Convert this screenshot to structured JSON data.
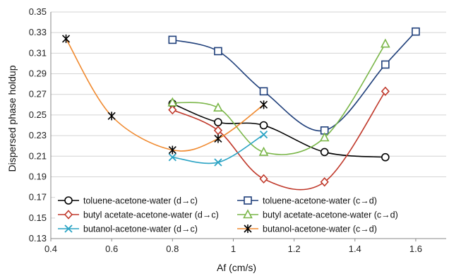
{
  "chart_data": {
    "type": "line",
    "title": "",
    "xlabel": "Af (cm/s)",
    "ylabel": "Dispersed phase holdup",
    "xlim": [
      0.4,
      1.7
    ],
    "ylim": [
      0.13,
      0.35
    ],
    "xticks": [
      "0.4",
      "0.6",
      "0.8",
      "1",
      "1.2",
      "1.4",
      "1.6"
    ],
    "yticks": [
      "0.13",
      "0.15",
      "0.17",
      "0.19",
      "0.21",
      "0.23",
      "0.25",
      "0.27",
      "0.29",
      "0.31",
      "0.33",
      "0.35"
    ],
    "grid": "horizontal",
    "legend_position": "bottom-inside",
    "series": [
      {
        "name": "toluene-acetone-water (d→c)",
        "color": "#000000",
        "marker": "circle",
        "points": [
          [
            0.8,
            0.261
          ],
          [
            0.95,
            0.243
          ],
          [
            1.1,
            0.24
          ],
          [
            1.3,
            0.214
          ],
          [
            1.5,
            0.209
          ]
        ]
      },
      {
        "name": "toluene-acetone-water (c→d)",
        "color": "#1f3f7a",
        "marker": "square",
        "points": [
          [
            0.8,
            0.323
          ],
          [
            0.95,
            0.312
          ],
          [
            1.1,
            0.273
          ],
          [
            1.3,
            0.235
          ],
          [
            1.5,
            0.299
          ],
          [
            1.6,
            0.331
          ]
        ]
      },
      {
        "name": "butyl acetate-acetone-water (d→c)",
        "color": "#c0392b",
        "marker": "diamond",
        "points": [
          [
            0.8,
            0.255
          ],
          [
            0.95,
            0.235
          ],
          [
            1.1,
            0.188
          ],
          [
            1.3,
            0.185
          ],
          [
            1.5,
            0.273
          ]
        ]
      },
      {
        "name": "butyl acetate-acetone-water (c→d)",
        "color": "#7ab648",
        "marker": "triangle",
        "points": [
          [
            0.8,
            0.262
          ],
          [
            0.95,
            0.257
          ],
          [
            1.1,
            0.214
          ],
          [
            1.3,
            0.228
          ],
          [
            1.5,
            0.319
          ]
        ]
      },
      {
        "name": "butanol-acetone-water (d→c)",
        "color": "#2aa3c4",
        "marker": "x",
        "points": [
          [
            0.8,
            0.209
          ],
          [
            0.95,
            0.204
          ],
          [
            1.1,
            0.231
          ]
        ]
      },
      {
        "name": "butanol-acetone-water (c→d)",
        "color": "#f08a30",
        "marker": "star",
        "points": [
          [
            0.45,
            0.324
          ],
          [
            0.6,
            0.249
          ],
          [
            0.8,
            0.216
          ],
          [
            0.95,
            0.227
          ],
          [
            1.1,
            0.26
          ]
        ]
      }
    ]
  }
}
